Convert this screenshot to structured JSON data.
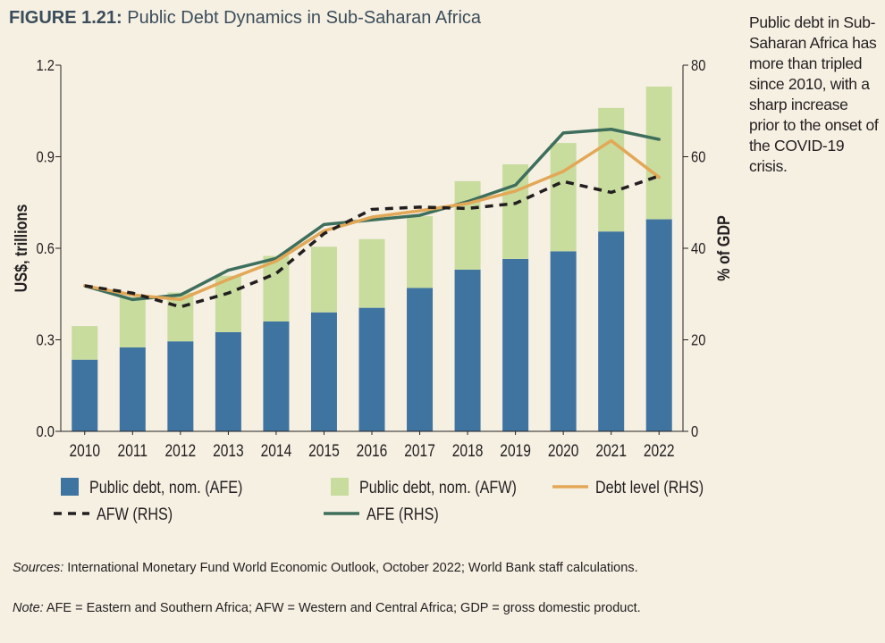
{
  "figure": {
    "number": "FIGURE 1.21:",
    "title": "Public Debt Dynamics in Sub-Saharan Africa"
  },
  "side_note": "Public debt in Sub-Saharan Africa has more than tripled since 2010, with a sharp increase prior to the onset of the COVID-19 crisis.",
  "sources": {
    "label": "Sources:",
    "text": "International Monetary Fund World Economic Outlook, October 2022; World Bank staff calculations."
  },
  "note": {
    "label": "Note:",
    "text": "AFE = Eastern and Southern Africa; AFW = Western and Central Africa; GDP = gross domestic product."
  },
  "chart_data": {
    "type": "bar",
    "categories": [
      "2010",
      "2011",
      "2012",
      "2013",
      "2014",
      "2015",
      "2016",
      "2017",
      "2018",
      "2019",
      "2020",
      "2021",
      "2022"
    ],
    "ylabel": "US$, trillions",
    "y2label": "% of GDP",
    "ylim": [
      0,
      1.2
    ],
    "y2lim": [
      0,
      80
    ],
    "yticks": [
      "0.0",
      "0.3",
      "0.6",
      "0.9",
      "1.2"
    ],
    "y2ticks": [
      "0",
      "20",
      "40",
      "60",
      "80"
    ],
    "stacked": true,
    "series": [
      {
        "name": "Public debt, nom. (AFE)",
        "kind": "bar",
        "axis": "left",
        "color": "#3f73a0",
        "values": [
          0.235,
          0.275,
          0.295,
          0.325,
          0.36,
          0.39,
          0.405,
          0.47,
          0.53,
          0.565,
          0.59,
          0.655,
          0.695
        ]
      },
      {
        "name": "Public debt, nom. (AFW)",
        "kind": "bar",
        "axis": "left",
        "color": "#c8dc9e",
        "values": [
          0.11,
          0.165,
          0.16,
          0.185,
          0.215,
          0.215,
          0.225,
          0.235,
          0.29,
          0.31,
          0.355,
          0.405,
          0.435
        ]
      },
      {
        "name": "Debt level (RHS)",
        "kind": "line",
        "axis": "right",
        "color": "#e2a858",
        "dash": "solid",
        "values": [
          31.8,
          29.8,
          28.8,
          33.2,
          37.2,
          43.8,
          46.8,
          48.2,
          49.8,
          52.5,
          56.8,
          63.5,
          55.5
        ]
      },
      {
        "name": "AFW (RHS)",
        "kind": "line",
        "axis": "right",
        "color": "#231f20",
        "dash": "dashed",
        "values": [
          31.8,
          30.2,
          27.2,
          30.2,
          34.5,
          43.2,
          48.5,
          49.0,
          48.7,
          49.8,
          54.6,
          52.2,
          55.8
        ]
      },
      {
        "name": "AFE (RHS)",
        "kind": "line",
        "axis": "right",
        "color": "#3e6e5c",
        "dash": "solid",
        "values": [
          31.8,
          28.8,
          29.8,
          35.2,
          37.8,
          45.2,
          46.2,
          47.2,
          50.2,
          53.8,
          65.2,
          66.0,
          63.8
        ]
      }
    ],
    "legend_position": "bottom",
    "grid": false
  }
}
